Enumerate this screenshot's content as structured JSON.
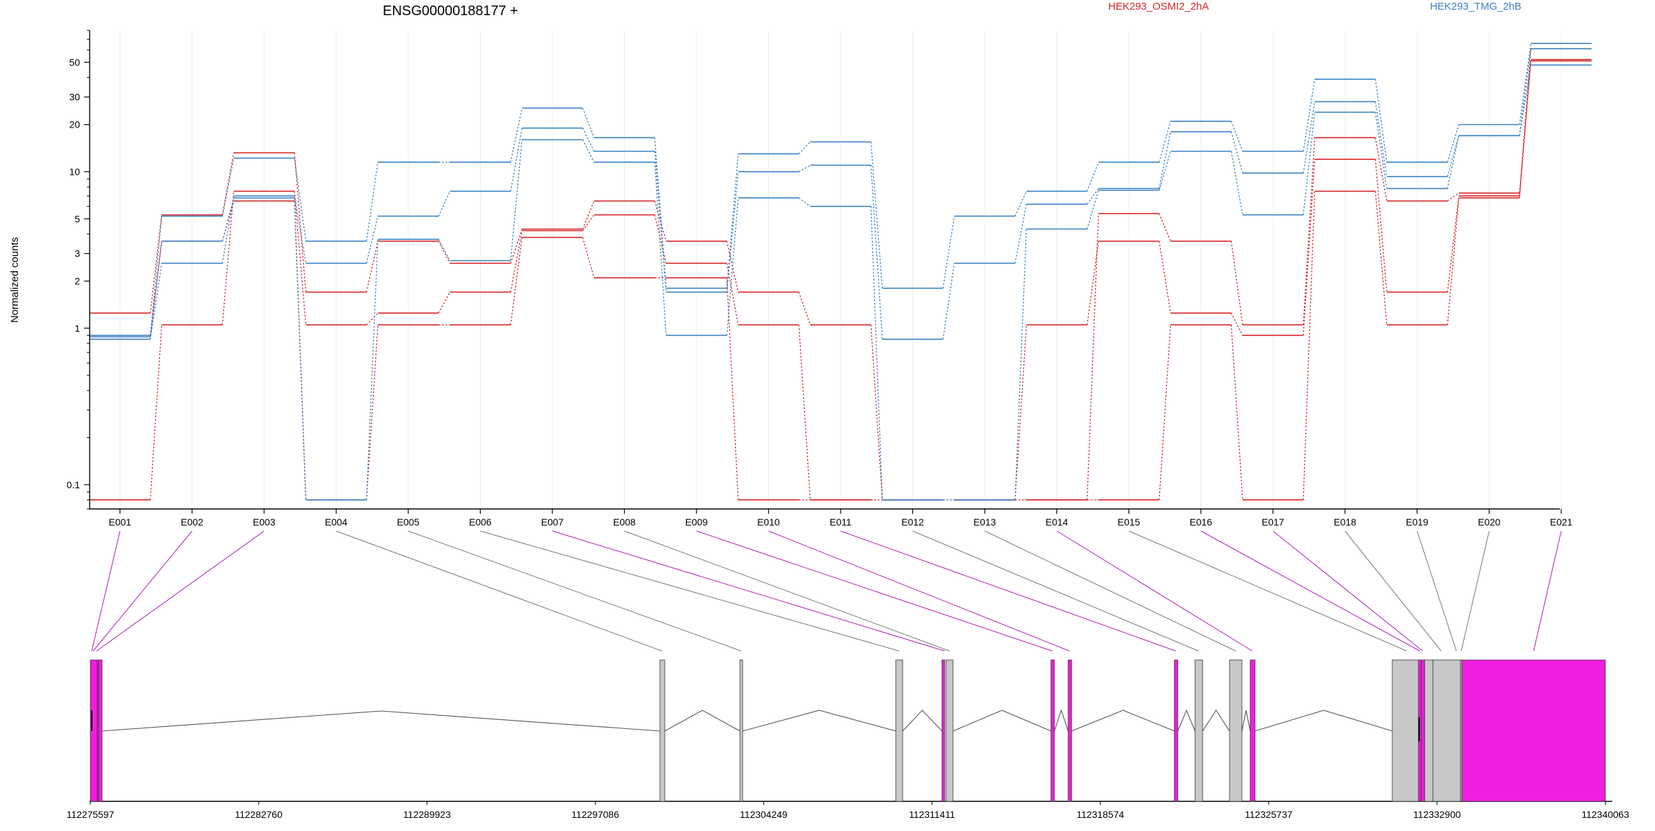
{
  "chart_data": {
    "type": "line",
    "title": "ENSG00000188177 +",
    "ylabel": "Normalized counts",
    "y_scale": "log",
    "ylim": [
      0.07,
      80
    ],
    "yticks": [
      {
        "v": 0.1,
        "label": "0.1"
      },
      {
        "v": 1,
        "label": "1"
      },
      {
        "v": 2,
        "label": "2"
      },
      {
        "v": 3,
        "label": "3"
      },
      {
        "v": 5,
        "label": "5"
      },
      {
        "v": 10,
        "label": "10"
      },
      {
        "v": 20,
        "label": "20"
      },
      {
        "v": 30,
        "label": "30"
      },
      {
        "v": 50,
        "label": "50"
      }
    ],
    "categories": [
      "E001",
      "E002",
      "E003",
      "E004",
      "E005",
      "E006",
      "E007",
      "E008",
      "E009",
      "E010",
      "E011",
      "E012",
      "E013",
      "E014",
      "E015",
      "E016",
      "E017",
      "E018",
      "E019",
      "E020",
      "E021"
    ],
    "legend": [
      {
        "label": "HEK293_OSMI2_2hA",
        "color": "#d62728"
      },
      {
        "label": "HEK293_TMG_2hB",
        "color": "#3b82c4"
      }
    ],
    "series": [
      {
        "group": "HEK293_OSMI2_2hA",
        "color": "#d62728",
        "values": [
          1.25,
          5.3,
          13.2,
          1.7,
          3.6,
          2.6,
          4.3,
          6.5,
          3.6,
          1.7,
          1.05,
          0.08,
          0.08,
          0.08,
          5.4,
          3.6,
          1.05,
          16.5,
          6.5,
          7.3,
          52
        ]
      },
      {
        "group": "HEK293_OSMI2_2hA",
        "color": "#d62728",
        "values": [
          0.08,
          1.05,
          7.5,
          1.05,
          1.25,
          1.7,
          4.2,
          5.3,
          2.6,
          1.05,
          0.08,
          0.08,
          0.08,
          1.05,
          3.6,
          1.25,
          0.9,
          12.0,
          1.7,
          7.0,
          61
        ]
      },
      {
        "group": "HEK293_OSMI2_2hA",
        "color": "#d62728",
        "values": [
          0.9,
          3.6,
          6.5,
          0.08,
          1.05,
          1.05,
          3.8,
          2.1,
          2.1,
          0.08,
          0.08,
          0.08,
          0.08,
          0.08,
          0.08,
          1.05,
          0.08,
          7.5,
          1.05,
          6.8,
          51
        ]
      },
      {
        "group": "HEK293_TMG_2hB",
        "color": "#3b82c4",
        "values": [
          0.9,
          5.2,
          12.2,
          3.6,
          11.5,
          11.5,
          25.5,
          16.5,
          1.8,
          13.0,
          15.5,
          1.8,
          5.2,
          7.5,
          11.5,
          21.0,
          13.5,
          39.0,
          11.5,
          20.0,
          66
        ]
      },
      {
        "group": "HEK293_TMG_2hB",
        "color": "#3b82c4",
        "values": [
          0.85,
          2.6,
          7.0,
          2.6,
          5.2,
          7.5,
          19.0,
          13.5,
          1.7,
          10.0,
          11.0,
          0.85,
          2.6,
          6.2,
          7.8,
          18.0,
          9.8,
          28.0,
          9.3,
          17.0,
          61
        ]
      },
      {
        "group": "HEK293_TMG_2hB",
        "color": "#3b82c4",
        "values": [
          0.88,
          3.6,
          6.8,
          0.08,
          3.7,
          2.7,
          16.0,
          11.5,
          0.9,
          6.8,
          6.0,
          0.08,
          0.08,
          4.3,
          7.6,
          13.5,
          5.3,
          24.0,
          7.8,
          17.0,
          48
        ]
      }
    ],
    "gene_model": {
      "coordinate_ticks": [
        "112275597",
        "112282760",
        "112289923",
        "112297086",
        "112304249",
        "112311411",
        "112318574",
        "112325737",
        "112332900",
        "112340063"
      ],
      "exons": [
        {
          "id": "E001",
          "tested": true
        },
        {
          "id": "E002",
          "tested": true
        },
        {
          "id": "E003",
          "tested": true
        },
        {
          "id": "E004",
          "tested": false
        },
        {
          "id": "E005",
          "tested": false
        },
        {
          "id": "E006",
          "tested": false
        },
        {
          "id": "E007",
          "tested": true
        },
        {
          "id": "E008",
          "tested": false
        },
        {
          "id": "E009",
          "tested": true
        },
        {
          "id": "E010",
          "tested": true
        },
        {
          "id": "E011",
          "tested": true
        },
        {
          "id": "E012",
          "tested": false
        },
        {
          "id": "E013",
          "tested": false
        },
        {
          "id": "E014",
          "tested": true
        },
        {
          "id": "E015",
          "tested": false
        },
        {
          "id": "E016",
          "tested": true
        },
        {
          "id": "E017",
          "tested": true
        },
        {
          "id": "E018",
          "tested": false
        },
        {
          "id": "E019",
          "tested": false
        },
        {
          "id": "E020",
          "tested": false
        },
        {
          "id": "E021",
          "tested": true
        }
      ],
      "highlight_color": "#f01ee0",
      "plain_color": "#c8c8c8"
    }
  }
}
